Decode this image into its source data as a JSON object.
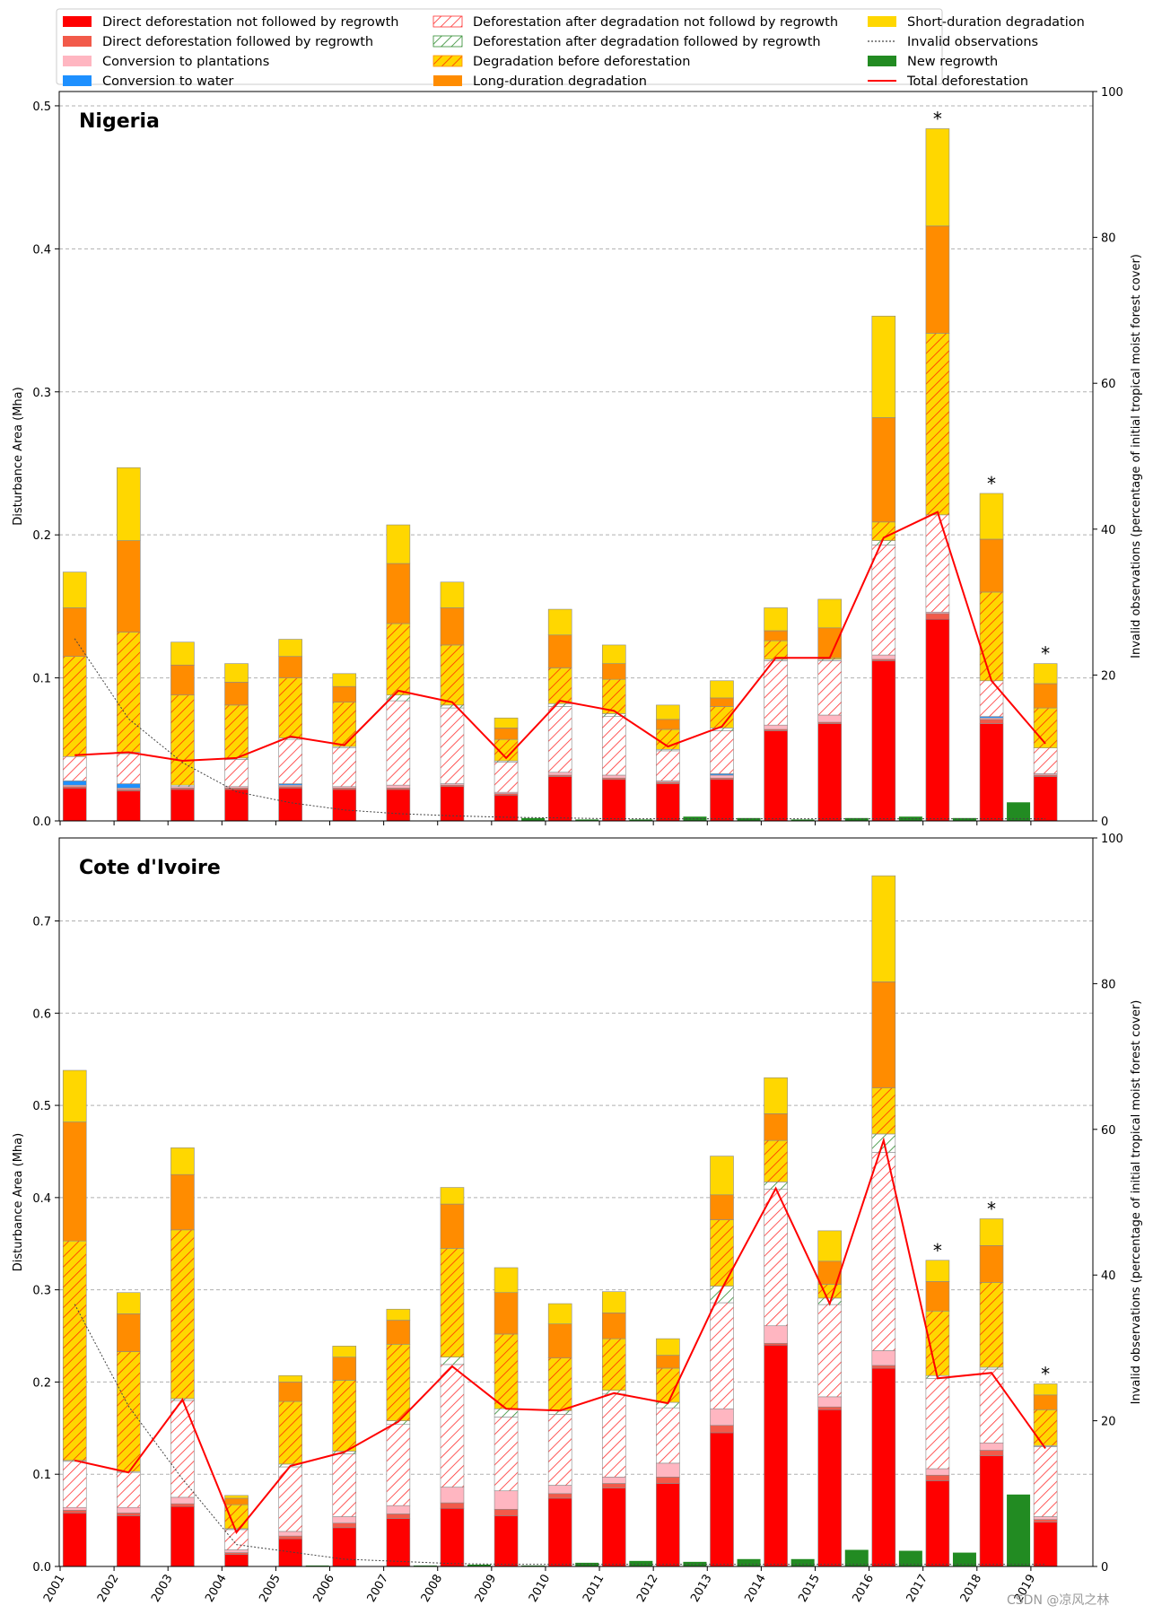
{
  "watermark": "CSDN @凉风之林",
  "colors": {
    "direct_no_regrowth": "#ff0000",
    "direct_regrowth": "#f25a4a",
    "plantations": "#ffb6c1",
    "water": "#1e90ff",
    "deg_def_no_regrowth": "#ff4040",
    "deg_def_regrowth": "#2e8b2e",
    "deg_before_def_fill": "#ffd700",
    "deg_before_def_hatch": "#ff3000",
    "long_duration": "#ff8c00",
    "short_duration": "#ffd700",
    "invalid": "#444444",
    "new_regrowth": "#228b22",
    "total_line": "#ff0000",
    "grid": "#b0b0b0"
  },
  "legend": [
    {
      "key": "direct_no_regrowth",
      "label": "Direct deforestation not followed by regrowth",
      "kind": "solid"
    },
    {
      "key": "direct_regrowth",
      "label": "Direct deforestation followed by regrowth",
      "kind": "solid"
    },
    {
      "key": "plantations",
      "label": "Conversion to plantations",
      "kind": "solid"
    },
    {
      "key": "water",
      "label": "Conversion to water",
      "kind": "solid"
    },
    {
      "key": "deg_def_no_regrowth",
      "label": "Deforestation after degradation not followd by regrowth",
      "kind": "hatch_white"
    },
    {
      "key": "deg_def_regrowth",
      "label": "Deforestation after degradation followed by regrowth",
      "kind": "hatch_white_green"
    },
    {
      "key": "deg_before_def",
      "label": "Degradation before deforestation",
      "kind": "hatch_yellow"
    },
    {
      "key": "long_duration",
      "label": "Long-duration degradation",
      "kind": "solid"
    },
    {
      "key": "short_duration",
      "label": "Short-duration degradation",
      "kind": "solid"
    },
    {
      "key": "invalid",
      "label": "Invalid observations",
      "kind": "dotted"
    },
    {
      "key": "new_regrowth",
      "label": "New regrowth",
      "kind": "solid"
    },
    {
      "key": "total_line",
      "label": "Total deforestation",
      "kind": "line"
    }
  ],
  "chart_data": [
    {
      "type": "bar",
      "title": "Nigeria",
      "ylabel": "Disturbance Area (Mha)",
      "y2label": "Invalid observations (percentage of initial tropical moist forest cover)",
      "ylim": [
        0,
        0.51
      ],
      "yticks": [
        0.0,
        0.1,
        0.2,
        0.3,
        0.4,
        0.5
      ],
      "ytick_labels": [
        "0.0",
        "0.1",
        "0.2",
        "0.3",
        "0.4",
        "0.5"
      ],
      "y2lim": [
        0,
        100
      ],
      "y2ticks": [
        0,
        20,
        40,
        60,
        80,
        100
      ],
      "grid": true,
      "categories": [
        "2001",
        "2002",
        "2003",
        "2004",
        "2005",
        "2006",
        "2007",
        "2008",
        "2009",
        "2010",
        "2011",
        "2012",
        "2013",
        "2014",
        "2015",
        "2016",
        "2017",
        "2018",
        "2019"
      ],
      "stack_order": [
        "direct_no_regrowth",
        "direct_regrowth",
        "plantations",
        "water",
        "deg_def_no_regrowth",
        "deg_def_regrowth",
        "deg_before_def",
        "long_duration",
        "short_duration"
      ],
      "series": [
        {
          "name": "direct_no_regrowth",
          "values": [
            0.023,
            0.021,
            0.022,
            0.022,
            0.023,
            0.022,
            0.022,
            0.024,
            0.018,
            0.031,
            0.029,
            0.026,
            0.029,
            0.063,
            0.068,
            0.112,
            0.141,
            0.068,
            0.031
          ]
        },
        {
          "name": "direct_regrowth",
          "values": [
            0.001,
            0.001,
            0.001,
            0.001,
            0.001,
            0.001,
            0.001,
            0.001,
            0.001,
            0.001,
            0.001,
            0.001,
            0.001,
            0.001,
            0.001,
            0.001,
            0.004,
            0.003,
            0.001
          ]
        },
        {
          "name": "plantations",
          "values": [
            0.001,
            0.001,
            0.001,
            0.001,
            0.001,
            0.001,
            0.002,
            0.001,
            0.001,
            0.002,
            0.002,
            0.001,
            0.002,
            0.003,
            0.005,
            0.003,
            0.001,
            0.001,
            0.001
          ]
        },
        {
          "name": "water",
          "values": [
            0.003,
            0.003,
            0.0,
            0.0,
            0.001,
            0.0,
            0.0,
            0.0,
            0.0,
            0.0,
            0.0,
            0.0,
            0.001,
            0.0,
            0.0,
            0.0,
            0.0,
            0.001,
            0.0
          ]
        },
        {
          "name": "deg_def_no_regrowth",
          "values": [
            0.017,
            0.021,
            0.0,
            0.019,
            0.031,
            0.027,
            0.059,
            0.053,
            0.021,
            0.046,
            0.041,
            0.021,
            0.03,
            0.045,
            0.038,
            0.077,
            0.068,
            0.025,
            0.018
          ]
        },
        {
          "name": "deg_def_regrowth",
          "values": [
            0.0,
            0.001,
            0.001,
            0.001,
            0.001,
            0.001,
            0.004,
            0.002,
            0.001,
            0.002,
            0.002,
            0.001,
            0.002,
            0.001,
            0.001,
            0.003,
            0.0,
            0.0,
            0.0
          ]
        },
        {
          "name": "deg_before_def",
          "values": [
            0.07,
            0.084,
            0.063,
            0.037,
            0.042,
            0.031,
            0.05,
            0.042,
            0.015,
            0.025,
            0.024,
            0.014,
            0.015,
            0.013,
            0.001,
            0.013,
            0.127,
            0.062,
            0.028
          ]
        },
        {
          "name": "long_duration",
          "values": [
            0.034,
            0.064,
            0.021,
            0.016,
            0.015,
            0.011,
            0.042,
            0.026,
            0.008,
            0.023,
            0.011,
            0.007,
            0.006,
            0.007,
            0.021,
            0.073,
            0.075,
            0.037,
            0.017
          ]
        },
        {
          "name": "short_duration",
          "values": [
            0.025,
            0.051,
            0.016,
            0.013,
            0.012,
            0.009,
            0.027,
            0.018,
            0.007,
            0.018,
            0.013,
            0.01,
            0.012,
            0.016,
            0.02,
            0.071,
            0.068,
            0.032,
            0.014
          ]
        }
      ],
      "new_regrowth": [
        0,
        0,
        0,
        0,
        0,
        0,
        0,
        0,
        0.002,
        0.001,
        0.001,
        0.003,
        0.002,
        0.001,
        0.002,
        0.003,
        0.002,
        0.013,
        0
      ],
      "total_deforestation": [
        0.046,
        0.048,
        0.042,
        0.044,
        0.059,
        0.053,
        0.091,
        0.083,
        0.044,
        0.084,
        0.077,
        0.052,
        0.066,
        0.114,
        0.114,
        0.198,
        0.216,
        0.098,
        0.054
      ],
      "invalid_observations_pct": [
        25,
        14,
        8,
        4,
        2.5,
        1.5,
        1,
        0.7,
        0.5,
        0.4,
        0.3,
        0.3,
        0.3,
        0.3,
        0.3,
        0.3,
        0.3,
        0.3,
        0.3
      ],
      "asterisks": [
        "2017",
        "2018",
        "2019"
      ]
    },
    {
      "type": "bar",
      "title": "Cote d'Ivoire",
      "ylabel": "Disturbance Area (Mha)",
      "y2label": "Invalid observations (percentage of initial tropical moist forest cover)",
      "ylim": [
        0,
        0.79
      ],
      "yticks": [
        0.0,
        0.1,
        0.2,
        0.3,
        0.4,
        0.5,
        0.6,
        0.7
      ],
      "ytick_labels": [
        "0.0",
        "0.1",
        "0.2",
        "0.3",
        "0.4",
        "0.5",
        "0.6",
        "0.7"
      ],
      "y2lim": [
        0,
        100
      ],
      "y2ticks": [
        0,
        20,
        40,
        60,
        80,
        100
      ],
      "grid": true,
      "categories": [
        "2001",
        "2002",
        "2003",
        "2004",
        "2005",
        "2006",
        "2007",
        "2008",
        "2009",
        "2010",
        "2011",
        "2012",
        "2013",
        "2014",
        "2015",
        "2016",
        "2017",
        "2018",
        "2019"
      ],
      "stack_order": [
        "direct_no_regrowth",
        "direct_regrowth",
        "plantations",
        "water",
        "deg_def_no_regrowth",
        "deg_def_regrowth",
        "deg_before_def",
        "long_duration",
        "short_duration"
      ],
      "series": [
        {
          "name": "direct_no_regrowth",
          "values": [
            0.058,
            0.055,
            0.065,
            0.013,
            0.03,
            0.042,
            0.052,
            0.063,
            0.055,
            0.074,
            0.085,
            0.09,
            0.145,
            0.24,
            0.17,
            0.215,
            0.093,
            0.12,
            0.048
          ]
        },
        {
          "name": "direct_regrowth",
          "values": [
            0.003,
            0.003,
            0.003,
            0.002,
            0.003,
            0.005,
            0.005,
            0.006,
            0.007,
            0.005,
            0.005,
            0.007,
            0.008,
            0.002,
            0.003,
            0.003,
            0.006,
            0.006,
            0.003
          ]
        },
        {
          "name": "plantations",
          "values": [
            0.003,
            0.006,
            0.007,
            0.003,
            0.005,
            0.007,
            0.009,
            0.017,
            0.02,
            0.009,
            0.007,
            0.015,
            0.018,
            0.019,
            0.011,
            0.016,
            0.007,
            0.008,
            0.003
          ]
        },
        {
          "name": "water",
          "values": [
            0,
            0,
            0,
            0,
            0,
            0,
            0,
            0,
            0,
            0,
            0,
            0,
            0,
            0,
            0,
            0,
            0,
            0,
            0
          ]
        },
        {
          "name": "deg_def_no_regrowth",
          "values": [
            0.05,
            0.038,
            0.105,
            0.022,
            0.07,
            0.068,
            0.088,
            0.133,
            0.08,
            0.077,
            0.09,
            0.06,
            0.115,
            0.148,
            0.1,
            0.215,
            0.098,
            0.08,
            0.076
          ]
        },
        {
          "name": "deg_def_regrowth",
          "values": [
            0.001,
            0.001,
            0.002,
            0.001,
            0.003,
            0.003,
            0.004,
            0.008,
            0.009,
            0.004,
            0.004,
            0.006,
            0.018,
            0.008,
            0.007,
            0.02,
            0.003,
            0.002,
            0.001
          ]
        },
        {
          "name": "deg_before_def",
          "values": [
            0.238,
            0.13,
            0.183,
            0.026,
            0.068,
            0.077,
            0.083,
            0.118,
            0.081,
            0.057,
            0.056,
            0.037,
            0.072,
            0.045,
            0.015,
            0.05,
            0.07,
            0.092,
            0.039
          ]
        },
        {
          "name": "long_duration",
          "values": [
            0.129,
            0.041,
            0.06,
            0.007,
            0.021,
            0.025,
            0.026,
            0.048,
            0.045,
            0.037,
            0.028,
            0.014,
            0.027,
            0.029,
            0.025,
            0.115,
            0.032,
            0.04,
            0.016
          ]
        },
        {
          "name": "short_duration",
          "values": [
            0.056,
            0.023,
            0.029,
            0.003,
            0.007,
            0.012,
            0.012,
            0.018,
            0.027,
            0.022,
            0.023,
            0.018,
            0.042,
            0.039,
            0.033,
            0.115,
            0.023,
            0.029,
            0.012
          ]
        }
      ],
      "new_regrowth": [
        0,
        0,
        0,
        0,
        0.001,
        0,
        0.001,
        0.002,
        0.001,
        0.004,
        0.006,
        0.005,
        0.008,
        0.008,
        0.018,
        0.017,
        0.015,
        0.078,
        0
      ],
      "total_deforestation": [
        0.115,
        0.102,
        0.181,
        0.037,
        0.109,
        0.124,
        0.157,
        0.217,
        0.171,
        0.169,
        0.188,
        0.177,
        0.301,
        0.41,
        0.285,
        0.462,
        0.204,
        0.21,
        0.128
      ],
      "invalid_observations_pct": [
        36,
        22,
        12,
        3,
        2,
        1,
        0.7,
        0.4,
        0.3,
        0.3,
        0.3,
        0.3,
        0.3,
        0.3,
        0.3,
        0.3,
        0.3,
        0.3,
        0.3
      ],
      "asterisks": [
        "2017",
        "2018",
        "2019"
      ]
    }
  ]
}
